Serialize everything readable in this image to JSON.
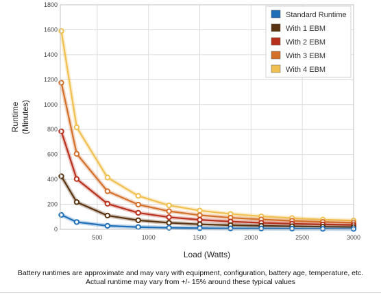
{
  "chart_data": {
    "type": "line",
    "xlabel": "Load (Watts)",
    "ylabel_lines": [
      "Runtime",
      "(Minutes)"
    ],
    "xlim": [
      140,
      3000
    ],
    "ylim": [
      0,
      1800
    ],
    "x_ticks": [
      500,
      1000,
      1500,
      2000,
      2500,
      3000
    ],
    "y_ticks": [
      0,
      200,
      400,
      600,
      800,
      1000,
      1200,
      1400,
      1600,
      1800
    ],
    "grid": true,
    "legend_position": "top-right",
    "x": [
      150,
      300,
      600,
      900,
      1200,
      1500,
      1800,
      2100,
      2400,
      2700,
      3000
    ],
    "series": [
      {
        "name": "Standard Runtime",
        "color": "#1f6fb8",
        "values": [
          115,
          58,
          28,
          18,
          12,
          9,
          7,
          6,
          5,
          4,
          3
        ]
      },
      {
        "name": "With 1 EBM",
        "color": "#5a3310",
        "values": [
          425,
          218,
          110,
          72,
          52,
          40,
          33,
          28,
          24,
          21,
          18
        ]
      },
      {
        "name": "With 2 EBM",
        "color": "#b8301c",
        "values": [
          785,
          403,
          205,
          132,
          97,
          76,
          62,
          52,
          45,
          39,
          35
        ]
      },
      {
        "name": "With 3 EBM",
        "color": "#d3702a",
        "values": [
          1175,
          605,
          305,
          198,
          145,
          113,
          93,
          79,
          68,
          59,
          53
        ]
      },
      {
        "name": "With 4 EBM",
        "color": "#f0c050",
        "values": [
          1590,
          818,
          415,
          268,
          192,
          150,
          123,
          104,
          90,
          78,
          70
        ]
      }
    ]
  },
  "footnote": {
    "line1": "Battery runtimes are approximate and may vary with equipment, configuration, battery age, temperature, etc.",
    "line2": "Actual runtime may vary from +/- 15% around these typical values"
  }
}
